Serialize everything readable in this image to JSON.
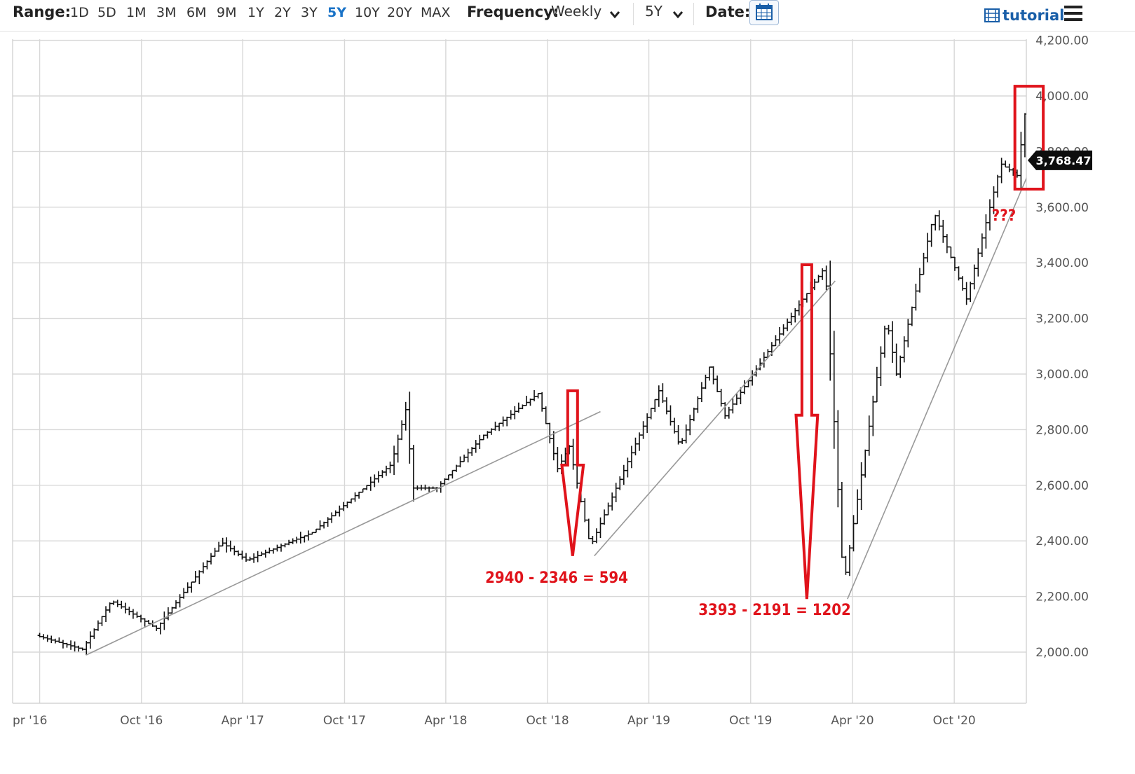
{
  "toolbar": {
    "range_label": "Range:",
    "ranges": [
      "1D",
      "5D",
      "1M",
      "3M",
      "6M",
      "9M",
      "1Y",
      "2Y",
      "3Y",
      "5Y",
      "10Y",
      "20Y",
      "MAX"
    ],
    "active_range": "5Y",
    "frequency_label": "Frequency:",
    "frequency_value": "Weekly",
    "period_value": "5Y",
    "date_label": "Date:",
    "tutorial_label": "tutorial",
    "accent_color": "#1a73c7"
  },
  "chart_data": {
    "type": "ohlc",
    "frequency": "Weekly",
    "x_tick_labels": [
      "pr '16",
      "Oct '16",
      "Apr '17",
      "Oct '17",
      "Apr '18",
      "Oct '18",
      "Apr '19",
      "Oct '19",
      "Apr '20",
      "Oct '20"
    ],
    "y_tick_labels": [
      "4,200.00",
      "4,000.00",
      "3,800.00",
      "3,600.00",
      "3,400.00",
      "3,200.00",
      "3,000.00",
      "2,800.00",
      "2,600.00",
      "2,400.00",
      "2,200.00",
      "2,000.00"
    ],
    "ylim": [
      1820,
      4200
    ],
    "grid": true,
    "last_value": 3768.47,
    "last_value_label": "3,768.47",
    "series": [
      {
        "name": "",
        "anchors": [
          [
            "2016-04-01",
            2060
          ],
          [
            "2016-06-24",
            2010
          ],
          [
            "2016-08-15",
            2185
          ],
          [
            "2016-11-04",
            2085
          ],
          [
            "2017-03-01",
            2395
          ],
          [
            "2017-04-15",
            2330
          ],
          [
            "2017-08-11",
            2430
          ],
          [
            "2017-12-31",
            2675
          ],
          [
            "2018-01-26",
            2872
          ],
          [
            "2018-02-09",
            2590
          ],
          [
            "2018-03-23",
            2590
          ],
          [
            "2018-06-15",
            2780
          ],
          [
            "2018-09-21",
            2930
          ],
          [
            "2018-10-26",
            2660
          ],
          [
            "2018-11-16",
            2740
          ],
          [
            "2018-12-24",
            2380
          ],
          [
            "2019-04-26",
            2940
          ],
          [
            "2019-06-03",
            2740
          ],
          [
            "2019-07-26",
            3025
          ],
          [
            "2019-08-23",
            2850
          ],
          [
            "2019-12-31",
            3240
          ],
          [
            "2020-02-19",
            3386
          ],
          [
            "2020-03-23",
            2237
          ],
          [
            "2020-06-08",
            3200
          ],
          [
            "2020-06-26",
            3000
          ],
          [
            "2020-09-02",
            3580
          ],
          [
            "2020-10-30",
            3270
          ],
          [
            "2020-12-31",
            3756
          ],
          [
            "2021-01-29",
            3714
          ],
          [
            "2021-02-12",
            3935
          ],
          [
            "2021-02-26",
            3768.47
          ]
        ]
      }
    ],
    "trendlines": [
      {
        "from": [
          "2016-06-24",
          1990
        ],
        "to": [
          "2019-01-04",
          2865
        ]
      },
      {
        "from": [
          "2018-12-24",
          2346
        ],
        "to": [
          "2020-03-01",
          3335
        ]
      },
      {
        "from": [
          "2020-03-23",
          2191
        ],
        "to": [
          "2021-02-26",
          3790
        ]
      }
    ],
    "annotations": [
      {
        "text": "2940 - 2346 = 594",
        "top": 2940,
        "bottom": 2346,
        "date": "2018-11-15"
      },
      {
        "text": "3393 - 2191 = 1202",
        "top": 3393,
        "bottom": 2191,
        "date": "2020-01-10"
      },
      {
        "text": "???",
        "date": "2021-02-15"
      }
    ],
    "highlight_box": {
      "from": "2021-01-18",
      "to": "2021-03-10",
      "top": 4035,
      "bottom": 3665
    }
  }
}
